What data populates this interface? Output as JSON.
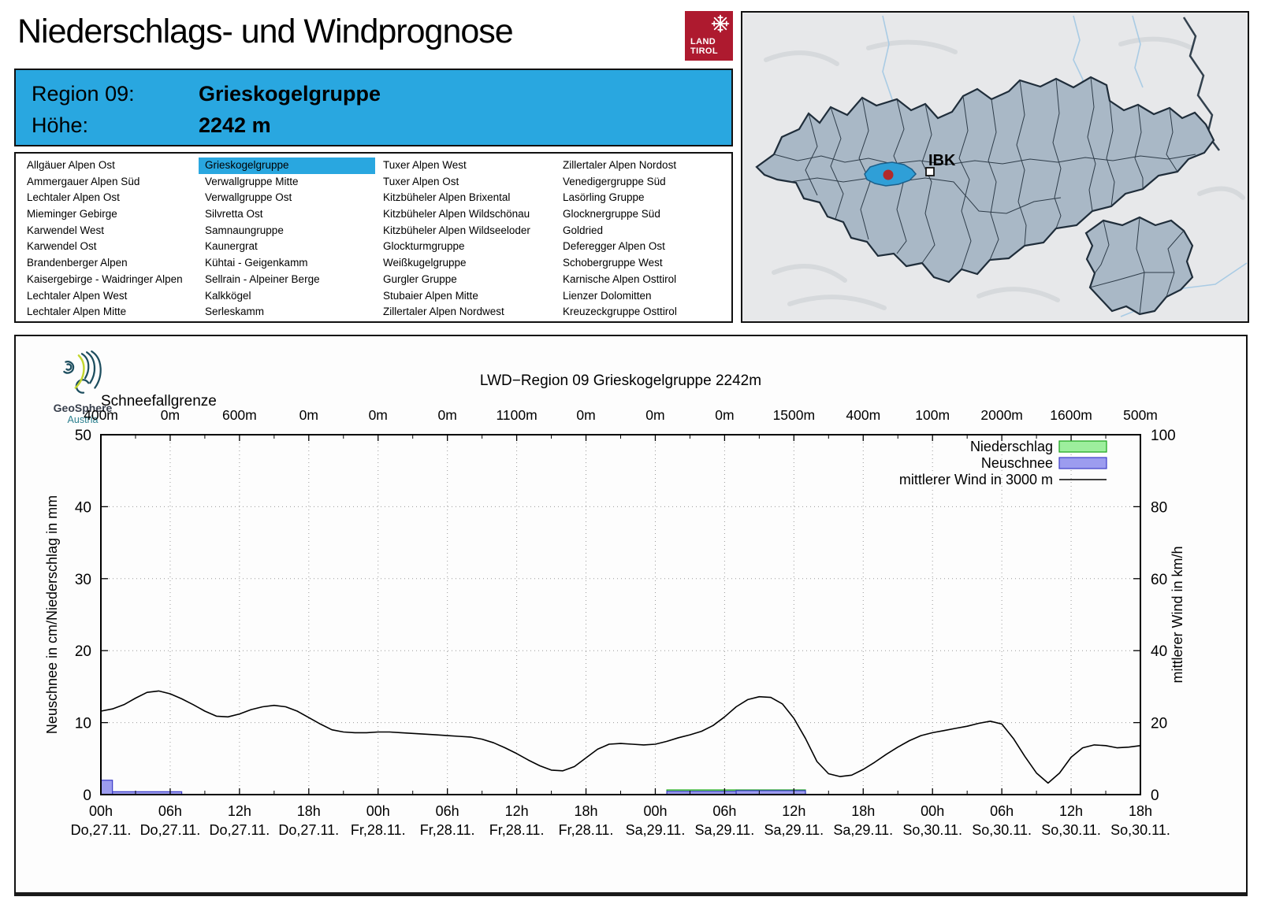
{
  "page": {
    "title": "Niederschlags- und Windprognose"
  },
  "land_tirol_logo": {
    "line1": "LAND",
    "line2": "TIROL"
  },
  "map": {
    "marker_label": "IBK",
    "highlight_color": "#2f9fd7"
  },
  "geosphere": {
    "brand": "GeoSphere",
    "sub": "Austria"
  },
  "region_header": {
    "region_label": "Region 09:",
    "region_name": "Grieskogelgruppe",
    "altitude_label": "Höhe:",
    "altitude_value": "2242 m"
  },
  "region_list": {
    "selected": "Grieskogelgruppe",
    "columns": [
      [
        "Allgäuer Alpen Ost",
        "Ammergauer Alpen Süd",
        "Lechtaler Alpen Ost",
        "Mieminger Gebirge",
        "Karwendel West",
        "Karwendel Ost",
        "Brandenberger Alpen",
        "Kaisergebirge - Waidringer Alpen",
        "Lechtaler Alpen West",
        "Lechtaler Alpen Mitte"
      ],
      [
        "Grieskogelgruppe",
        "Verwallgruppe Mitte",
        "Verwallgruppe Ost",
        "Silvretta Ost",
        "Samnaungruppe",
        "Kaunergrat",
        "Kühtai - Geigenkamm",
        "Sellrain - Alpeiner Berge",
        "Kalkkögel",
        "Serleskamm"
      ],
      [
        "Tuxer Alpen West",
        "Tuxer Alpen Ost",
        "Kitzbüheler Alpen Brixental",
        "Kitzbüheler Alpen Wildschönau",
        "Kitzbüheler Alpen Wildseeloder",
        "Glockturmgruppe",
        "Weißkugelgruppe",
        "Gurgler Gruppe",
        "Stubaier Alpen Mitte",
        "Zillertaler Alpen Nordwest"
      ],
      [
        "Zillertaler Alpen Nordost",
        "Venedigergruppe Süd",
        "Lasörling Gruppe",
        "Glocknergruppe Süd",
        "Goldried",
        "Deferegger Alpen Ost",
        "Schobergruppe West",
        "Karnische Alpen Osttirol",
        "Lienzer Dolomitten",
        "Kreuzeckgruppe Osttirol"
      ]
    ]
  },
  "chart_data": {
    "type": "line+bar",
    "title": "LWD−Region 09 Grieskogelgruppe 2242m",
    "snowline_header": "Schneefallgrenze",
    "snowline_labels": [
      "400m",
      "0m",
      "600m",
      "0m",
      "0m",
      "0m",
      "1100m",
      "0m",
      "0m",
      "0m",
      "1500m",
      "400m",
      "100m",
      "2000m",
      "1600m",
      "500m"
    ],
    "x_range_hours": [
      0,
      90
    ],
    "x_tick_hours": [
      0,
      6,
      12,
      18,
      24,
      30,
      36,
      42,
      48,
      54,
      60,
      66,
      72,
      78,
      84,
      90
    ],
    "x_tick_times": [
      "00h",
      "06h",
      "12h",
      "18h",
      "00h",
      "06h",
      "12h",
      "18h",
      "00h",
      "06h",
      "12h",
      "18h",
      "00h",
      "06h",
      "12h",
      "18h"
    ],
    "x_tick_dates": [
      "Do,27.11.",
      "Do,27.11.",
      "Do,27.11.",
      "Do,27.11.",
      "Fr,28.11.",
      "Fr,28.11.",
      "Fr,28.11.",
      "Fr,28.11.",
      "Sa,29.11.",
      "Sa,29.11.",
      "Sa,29.11.",
      "Sa,29.11.",
      "So,30.11.",
      "So,30.11.",
      "So,30.11.",
      "So,30.11."
    ],
    "ylabel_left": "Neuschnee in cm/Niederschlag in mm",
    "ylim_left": [
      0,
      50
    ],
    "ytick_step_left": 10,
    "ylabel_right": "mittlerer Wind in km/h",
    "ylim_right": [
      0,
      100
    ],
    "ytick_step_right": 20,
    "grid": true,
    "legend_position": "top-right",
    "legend": {
      "niederschlag_label": "Niederschlag",
      "neuschnee_label": "Neuschnee",
      "wind_label": "mittlerer Wind in 3000 m"
    },
    "colors": {
      "niederschlag_fill": "#9dee9d",
      "niederschlag_border": "#17a317",
      "neuschnee_fill": "#9c9cef",
      "neuschnee_border": "#3c3cc8",
      "wind_line": "#000000"
    },
    "niederschlag_mm": [
      {
        "from_hour": 49,
        "to_hour": 55,
        "value": 0.65
      },
      {
        "from_hour": 55,
        "to_hour": 61,
        "value": 0.65
      }
    ],
    "neuschnee_cm": [
      {
        "from_hour": 0,
        "to_hour": 1,
        "value": 2.0
      },
      {
        "from_hour": 1,
        "to_hour": 7,
        "value": 0.4
      },
      {
        "from_hour": 49,
        "to_hour": 55,
        "value": 0.45
      },
      {
        "from_hour": 55,
        "to_hour": 61,
        "value": 0.55
      }
    ],
    "wind_kmh": {
      "x_start_hour": 0,
      "x_step_hours": 1,
      "values": [
        23.2,
        23.8,
        25.0,
        26.8,
        28.4,
        28.8,
        28.0,
        26.6,
        25.0,
        23.2,
        21.8,
        21.6,
        22.4,
        23.6,
        24.4,
        24.8,
        24.4,
        23.2,
        21.4,
        19.6,
        18.0,
        17.4,
        17.2,
        17.2,
        17.4,
        17.4,
        17.2,
        17.0,
        16.8,
        16.6,
        16.4,
        16.2,
        16.0,
        15.4,
        14.4,
        13.0,
        11.4,
        9.6,
        8.0,
        6.8,
        6.6,
        7.8,
        10.2,
        12.6,
        14.0,
        14.2,
        14.0,
        13.8,
        14.0,
        14.8,
        15.8,
        16.6,
        17.6,
        19.2,
        21.6,
        24.4,
        26.4,
        27.2,
        27.0,
        25.2,
        21.2,
        15.6,
        9.2,
        5.8,
        5.0,
        5.4,
        7.0,
        9.0,
        11.2,
        13.2,
        15.0,
        16.4,
        17.2,
        17.8,
        18.4,
        19.0,
        19.8,
        20.4,
        19.6,
        15.6,
        10.6,
        6.0,
        3.2,
        6.0,
        10.4,
        13.0,
        13.8,
        13.6,
        13.0,
        13.2,
        13.6
      ]
    }
  }
}
